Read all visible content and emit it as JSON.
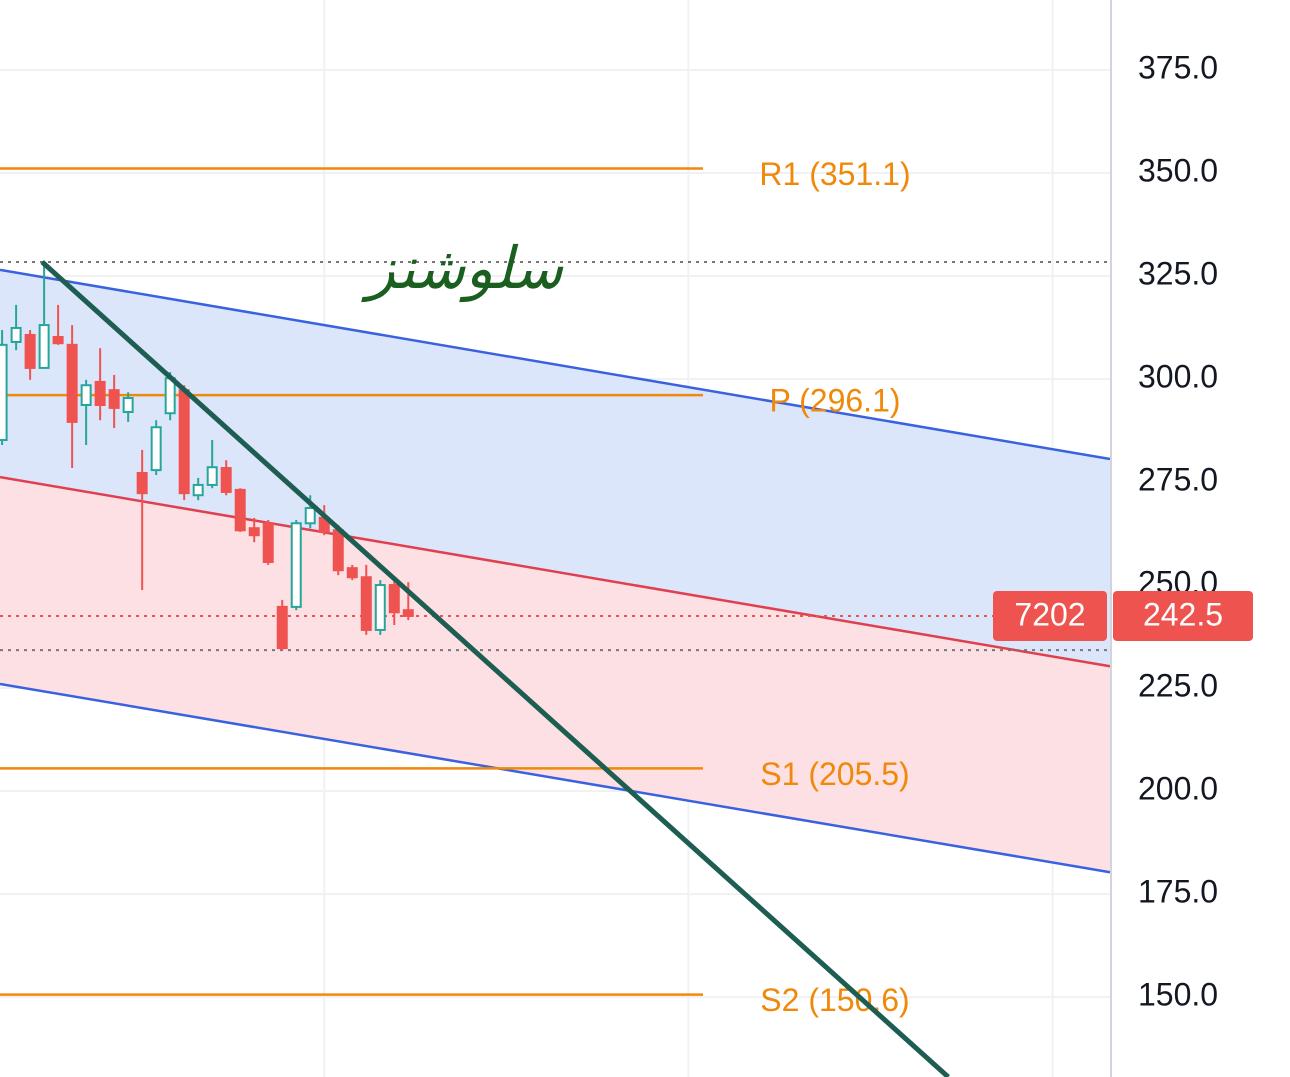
{
  "chart_data": {
    "type": "candlestick",
    "x": [
      0,
      1,
      2,
      3,
      4,
      5,
      6,
      7,
      8,
      9,
      10,
      11,
      12,
      13,
      14,
      15,
      16,
      17,
      18,
      19,
      20,
      21,
      22,
      23,
      24,
      25,
      26,
      27,
      28,
      29
    ],
    "open": [
      285.2,
      309.0,
      310.7,
      302.7,
      310.2,
      308.3,
      293.7,
      299.3,
      297.3,
      292.0,
      277.2,
      277.9,
      291.7,
      297.3,
      271.8,
      274.3,
      278.4,
      273.1,
      263.8,
      265.0,
      244.7,
      244.7,
      265.0,
      266.3,
      263.3,
      254.1,
      251.9,
      239.1,
      250.0,
      243.9
    ],
    "high": [
      311.9,
      318.0,
      311.9,
      328.4,
      318.0,
      313.1,
      299.8,
      307.5,
      301.0,
      296.8,
      282.8,
      290.0,
      301.7,
      298.5,
      276.0,
      285.2,
      280.3,
      273.5,
      266.3,
      265.8,
      246.4,
      265.8,
      271.8,
      269.4,
      264.6,
      254.9,
      254.9,
      251.2,
      251.7,
      250.7
    ],
    "low": [
      284.0,
      307.0,
      299.8,
      302.7,
      308.3,
      278.4,
      284.0,
      290.0,
      288.1,
      289.6,
      248.8,
      276.7,
      290.0,
      270.6,
      270.6,
      273.5,
      271.8,
      262.9,
      260.4,
      254.9,
      234.2,
      243.9,
      263.8,
      262.1,
      252.4,
      251.2,
      237.9,
      237.9,
      240.3,
      241.5
    ],
    "close": [
      308.3,
      312.4,
      302.7,
      313.1,
      308.7,
      289.6,
      298.5,
      293.7,
      293.0,
      295.4,
      272.3,
      288.3,
      300.2,
      272.3,
      274.3,
      278.6,
      272.6,
      263.3,
      262.1,
      255.6,
      234.7,
      265.0,
      268.7,
      262.9,
      253.6,
      251.9,
      239.1,
      250.0,
      243.4,
      242.5
    ],
    "up_color": "#26a69a",
    "down_color": "#ef5350",
    "xlim": [
      -0.15,
      79.1
    ],
    "xticks": [
      23,
      49,
      75
    ],
    "ylim": [
      130.6,
      392
    ],
    "yticks": [
      {
        "value": 150,
        "label": "150.0"
      },
      {
        "value": 175,
        "label": "175.0"
      },
      {
        "value": 200,
        "label": "200.0"
      },
      {
        "value": 225,
        "label": "225.0"
      },
      {
        "value": 250,
        "label": "250.0"
      },
      {
        "value": 275,
        "label": "275.0"
      },
      {
        "value": 300,
        "label": "300.0"
      },
      {
        "value": 325,
        "label": "325.0"
      },
      {
        "value": 350,
        "label": "350.0"
      },
      {
        "value": 375,
        "label": "375.0"
      }
    ],
    "grid": true,
    "pivots": [
      {
        "label": "R1 (351.1)",
        "value": 351.1
      },
      {
        "label": "P (296.1)",
        "value": 296.1
      },
      {
        "label": "S1 (205.5)",
        "value": 205.5
      },
      {
        "label": "S2 (150.6)",
        "value": 150.6
      }
    ],
    "pivot_color": "#f0880a",
    "channel": {
      "upper": {
        "x": [
          -0.15,
          79.1
        ],
        "y": [
          326.5,
          280.6
        ]
      },
      "middle": {
        "x": [
          -0.15,
          79.1
        ],
        "y": [
          276.2,
          230.3
        ]
      },
      "lower": {
        "x": [
          -0.15,
          79.1
        ],
        "y": [
          226.0,
          180.3
        ]
      }
    },
    "trendline": {
      "x": [
        2.86,
        67.55
      ],
      "y": [
        328.4,
        130.6
      ]
    },
    "high_line": 328.4,
    "low_line": 234.2,
    "last_price": 242.5,
    "countdown": "7202",
    "annotation": "سلوشنز"
  }
}
